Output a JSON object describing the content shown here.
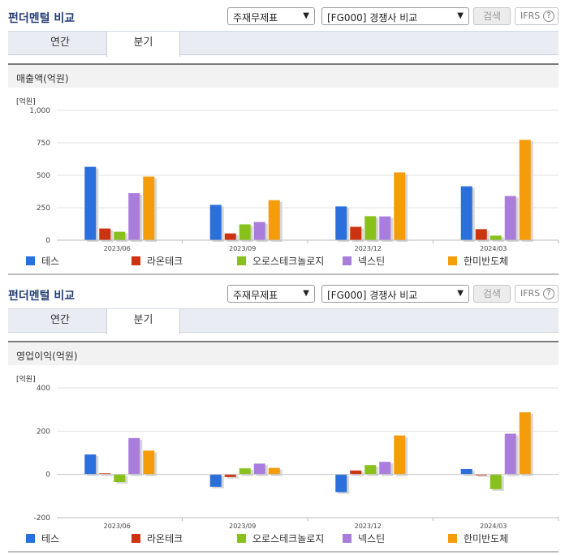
{
  "panels": [
    {
      "title": "펀더멘털 비교",
      "select_type": "주재무제표",
      "select_compare": "[FG000] 경쟁사 비교",
      "search_label": "검색",
      "ifrs_label": "IFRS",
      "help_label": "?",
      "tabs": [
        "연간",
        "분기"
      ],
      "active_tab": "분기",
      "section_label": "매출액(억원)",
      "unit_label": "[억원]"
    },
    {
      "title": "펀더멘털 비교",
      "select_type": "주재무제표",
      "select_compare": "[FG000] 경쟁사 비교",
      "search_label": "검색",
      "ifrs_label": "IFRS",
      "help_label": "?",
      "tabs": [
        "연간",
        "분기"
      ],
      "active_tab": "분기",
      "section_label": "영업이익(억원)",
      "unit_label": "[억원]"
    }
  ],
  "legend": [
    {
      "name": "테스",
      "color": "#2a6fdb"
    },
    {
      "name": "라온테크",
      "color": "#cc3311"
    },
    {
      "name": "오로스테크놀로지",
      "color": "#88c11b"
    },
    {
      "name": "넥스틴",
      "color": "#a97ddb"
    },
    {
      "name": "한미반도체",
      "color": "#f59c0a"
    }
  ],
  "chart_data": [
    {
      "type": "bar",
      "title": "매출액(억원)",
      "ylabel": "[억원]",
      "categories": [
        "2023/06",
        "2023/09",
        "2023/12",
        "2024/03"
      ],
      "ylim": [
        0,
        1000
      ],
      "yticks": [
        0,
        250,
        500,
        750,
        1000
      ],
      "ytick_labels": [
        "0",
        "250",
        "500",
        "750",
        "1,000"
      ],
      "series": [
        {
          "name": "테스",
          "values": [
            565,
            272,
            260,
            415
          ]
        },
        {
          "name": "라온테크",
          "values": [
            90,
            52,
            103,
            85
          ]
        },
        {
          "name": "오로스테크놀로지",
          "values": [
            65,
            122,
            185,
            35
          ]
        },
        {
          "name": "넥스틴",
          "values": [
            362,
            140,
            183,
            340
          ]
        },
        {
          "name": "한미반도체",
          "values": [
            490,
            308,
            522,
            773
          ]
        }
      ]
    },
    {
      "type": "bar",
      "title": "영업이익(억원)",
      "ylabel": "[억원]",
      "categories": [
        "2023/06",
        "2023/09",
        "2023/12",
        "2024/03"
      ],
      "ylim": [
        -200,
        400
      ],
      "yticks": [
        -200,
        0,
        200,
        400
      ],
      "ytick_labels": [
        "-200",
        "0",
        "200",
        "400"
      ],
      "series": [
        {
          "name": "테스",
          "values": [
            92,
            -57,
            -82,
            25
          ]
        },
        {
          "name": "라온테크",
          "values": [
            5,
            -12,
            18,
            -5
          ]
        },
        {
          "name": "오로스테크놀로지",
          "values": [
            -35,
            28,
            43,
            -68
          ]
        },
        {
          "name": "넥스틴",
          "values": [
            168,
            50,
            58,
            188
          ]
        },
        {
          "name": "한미반도체",
          "values": [
            110,
            30,
            180,
            287
          ]
        }
      ]
    }
  ]
}
